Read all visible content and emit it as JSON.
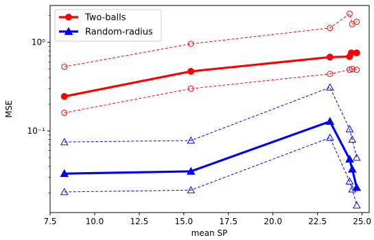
{
  "chart_data": {
    "type": "line",
    "title": "",
    "xlabel": "mean SP",
    "ylabel": "MSE",
    "xlim": [
      7.5,
      25.4
    ],
    "ylim": [
      0.012,
      2.6
    ],
    "yscale": "log",
    "x_ticks": [
      7.5,
      10.0,
      12.5,
      15.0,
      17.5,
      20.0,
      22.5,
      25.0
    ],
    "x_tick_labels": [
      "7.5",
      "10.0",
      "12.5",
      "15.0",
      "17.5",
      "20.0",
      "22.5",
      "25.0"
    ],
    "y_ticks": [
      0.1,
      1.0
    ],
    "y_tick_labels": [
      "10⁻¹",
      "10⁰"
    ],
    "grid": false,
    "legend_position": "top-left",
    "series": [
      {
        "name": "Two-balls",
        "color": "#ff0000",
        "marker": "circle",
        "style": "solid-thick",
        "in_legend": true,
        "x": [
          8.3,
          15.4,
          23.2,
          24.3,
          24.4,
          24.7
        ],
        "y": [
          0.245,
          0.47,
          0.68,
          0.69,
          0.76,
          0.76
        ]
      },
      {
        "name": "Random-radius",
        "color": "#0000ff",
        "marker": "triangle",
        "style": "solid-thick",
        "in_legend": true,
        "x": [
          8.3,
          15.4,
          23.2,
          24.3,
          24.45,
          24.7
        ],
        "y": [
          0.033,
          0.035,
          0.128,
          0.048,
          0.037,
          0.023
        ]
      },
      {
        "name": "",
        "color": "#ff0000",
        "marker": "circle-open",
        "style": "dashed",
        "in_legend": false,
        "x": [
          8.3,
          15.4,
          23.2,
          24.3,
          24.45,
          24.7
        ],
        "y": [
          0.53,
          0.96,
          1.45,
          2.1,
          1.6,
          1.7
        ]
      },
      {
        "name": "",
        "color": "#ff0000",
        "marker": "circle-open",
        "style": "dashed",
        "in_legend": false,
        "x": [
          8.3,
          15.4,
          23.2,
          24.3,
          24.45,
          24.7
        ],
        "y": [
          0.16,
          0.3,
          0.44,
          0.49,
          0.5,
          0.49
        ]
      },
      {
        "name": "",
        "color": "#0000ff",
        "marker": "triangle-open",
        "style": "dashed",
        "in_legend": false,
        "x": [
          8.3,
          15.4,
          23.2,
          24.3,
          24.45,
          24.7
        ],
        "y": [
          0.075,
          0.078,
          0.31,
          0.105,
          0.08,
          0.05
        ]
      },
      {
        "name": "",
        "color": "#0000ff",
        "marker": "triangle-open",
        "style": "dashed",
        "in_legend": false,
        "x": [
          8.3,
          15.4,
          23.2,
          24.3,
          24.45,
          24.7
        ],
        "y": [
          0.0205,
          0.0215,
          0.084,
          0.027,
          0.022,
          0.0145
        ]
      }
    ]
  }
}
